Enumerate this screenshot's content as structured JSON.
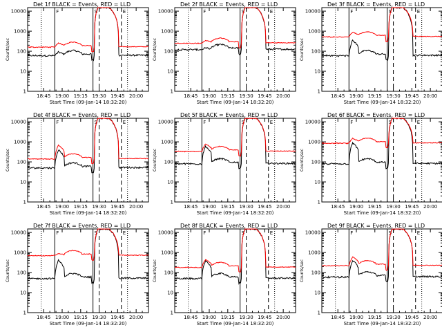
{
  "chart_data": {
    "type": "line",
    "panels": [
      {
        "title": "Det 1f  BLACK = Events, RED = LLD",
        "xlabel": "Start Time (09-Jan-14 18:32:20)",
        "ylabel": "Counts/sec",
        "black_base": 60,
        "red_base": 160,
        "black_peak": 90,
        "red_peak": 260
      },
      {
        "title": "Det 2f  BLACK = Events, RED = LLD",
        "xlabel": "Start Time (09-Jan-14 18:32:20)",
        "ylabel": "Counts/sec",
        "black_base": 120,
        "red_base": 250,
        "black_peak": 150,
        "red_peak": 350
      },
      {
        "title": "Det 3f  BLACK = Events, RED = LLD",
        "xlabel": "Start Time (09-Jan-14 18:32:20)",
        "ylabel": "Counts/sec",
        "black_base": 60,
        "red_base": 520,
        "black_peak": 350,
        "red_peak": 900
      },
      {
        "title": "Det 4f  BLACK = Events, RED = LLD",
        "xlabel": "Start Time (09-Jan-14 18:32:20)",
        "ylabel": "Counts/sec",
        "black_base": 50,
        "red_base": 140,
        "black_peak": 400,
        "red_peak": 700
      },
      {
        "title": "Det 5f  BLACK = Events, RED = LLD",
        "xlabel": "Start Time (09-Jan-14 18:32:20)",
        "ylabel": "Counts/sec",
        "black_base": 80,
        "red_base": 330,
        "black_peak": 600,
        "red_peak": 800
      },
      {
        "title": "Det 6f  BLACK = Events, RED = LLD",
        "xlabel": "Start Time (09-Jan-14 18:32:20)",
        "ylabel": "Counts/sec",
        "black_base": 80,
        "red_base": 850,
        "black_peak": 900,
        "red_peak": 1500
      },
      {
        "title": "Det 7f  BLACK = Events, RED = LLD",
        "xlabel": "Start Time (09-Jan-14 18:32:20)",
        "ylabel": "Counts/sec",
        "black_base": 50,
        "red_base": 700,
        "black_peak": 400,
        "red_peak": 900
      },
      {
        "title": "Det 8f  BLACK = Events, RED = LLD",
        "xlabel": "Start Time (09-Jan-14 18:32:20)",
        "ylabel": "Counts/sec",
        "black_base": 50,
        "red_base": 180,
        "black_peak": 400,
        "red_peak": 450
      },
      {
        "title": "Det 9f  BLACK = Events, RED = LLD",
        "xlabel": "Start Time (09-Jan-14 18:32:20)",
        "ylabel": "Counts/sec",
        "black_base": 60,
        "red_base": 220,
        "black_peak": 400,
        "red_peak": 600
      }
    ],
    "x_ticks": [
      "18:45",
      "19:00",
      "19:15",
      "19:30",
      "19:45",
      "20:00"
    ],
    "y_ticks": [
      "1",
      "10",
      "100",
      "1000",
      "10000"
    ],
    "x_range_minutes_after_18_00": [
      32,
      130
    ],
    "ylim": [
      1,
      15000
    ],
    "yscale": "log",
    "series": [
      {
        "color": "#000000"
      },
      {
        "color": "#ff0000"
      }
    ],
    "markers": [
      {
        "label": "F",
        "style": "solid",
        "time_minutes_after_18_00": 54
      },
      {
        "label": "S",
        "style": "solid",
        "time_minutes_after_18_00": 85
      },
      {
        "label": "",
        "style": "dashed",
        "time_minutes_after_18_00": 90
      },
      {
        "label": "E",
        "style": "dashed",
        "time_minutes_after_18_00": 108
      },
      {
        "label": "",
        "style": "dotted",
        "time_minutes_after_18_00": 43
      },
      {
        "label": "",
        "style": "dotted",
        "time_minutes_after_18_00": 113
      }
    ],
    "grid": false
  }
}
